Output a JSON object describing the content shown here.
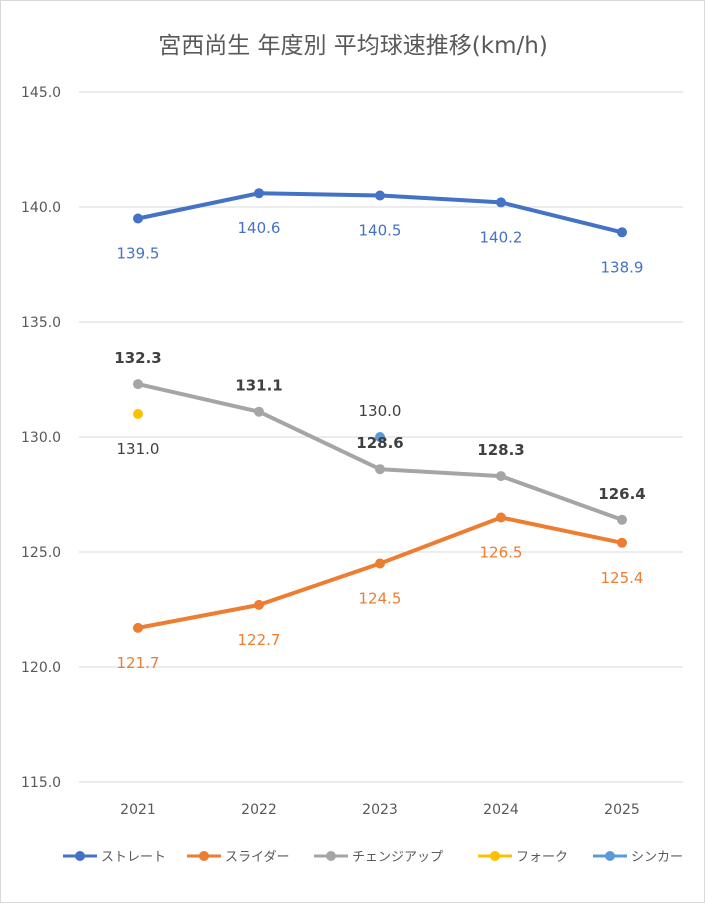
{
  "chart_data": {
    "type": "line",
    "title": "宮西尚生 年度別 平均球速推移(km/h)",
    "categories": [
      "2021",
      "2022",
      "2023",
      "2024",
      "2025"
    ],
    "ylim": [
      115,
      145
    ],
    "yticks": [
      "115.0",
      "120.0",
      "125.0",
      "130.0",
      "135.0",
      "140.0",
      "145.0"
    ],
    "grid": true,
    "legend_position": "bottom",
    "series": [
      {
        "name": "ストレート",
        "color": "#4472c4",
        "values": [
          139.5,
          140.6,
          140.5,
          140.2,
          138.9
        ],
        "labels": [
          "139.5",
          "140.6",
          "140.5",
          "140.2",
          "138.9"
        ],
        "label_position": "below",
        "line": true
      },
      {
        "name": "スライダー",
        "color": "#ed7d31",
        "values": [
          121.7,
          122.7,
          124.5,
          126.5,
          125.4
        ],
        "labels": [
          "121.7",
          "122.7",
          "124.5",
          "126.5",
          "125.4"
        ],
        "label_position": "below",
        "line": true
      },
      {
        "name": "チェンジアップ",
        "color": "#a5a5a5",
        "label_color": "#404040",
        "values": [
          132.3,
          131.1,
          128.6,
          128.3,
          126.4
        ],
        "labels": [
          "132.3",
          "131.1",
          "128.6",
          "128.3",
          "126.4"
        ],
        "label_position": "above",
        "line": true
      },
      {
        "name": "フォーク",
        "color": "#ffc000",
        "label_color": "#404040",
        "values": [
          131.0,
          null,
          null,
          null,
          null
        ],
        "labels": [
          "131.0",
          null,
          null,
          null,
          null
        ],
        "label_position": "below",
        "line": false
      },
      {
        "name": "シンカー",
        "color": "#5b9bd5",
        "label_color": "#404040",
        "values": [
          null,
          null,
          130.0,
          null,
          null
        ],
        "labels": [
          null,
          null,
          "130.0",
          null,
          null
        ],
        "label_position": "above",
        "line": false
      }
    ]
  }
}
